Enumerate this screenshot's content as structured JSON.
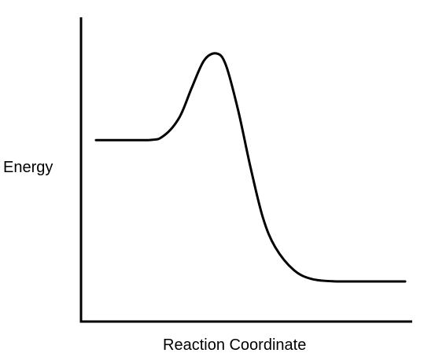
{
  "chart_data": {
    "type": "line",
    "xlabel": "Reaction Coordinate",
    "ylabel": "Energy",
    "series": [
      {
        "x": [
          0.0,
          0.17,
          0.22,
          0.27,
          0.31,
          0.35,
          0.39,
          0.42,
          0.46,
          0.5,
          0.54,
          0.58,
          0.64,
          0.7,
          0.78,
          0.86,
          1.0
        ],
        "values": [
          0.62,
          0.62,
          0.64,
          0.72,
          0.85,
          0.97,
          1.0,
          0.95,
          0.75,
          0.5,
          0.28,
          0.15,
          0.05,
          0.01,
          0.0,
          0.0,
          0.0
        ],
        "color": "#000000"
      }
    ],
    "xlim": [
      0,
      1
    ],
    "ylim": [
      0,
      1
    ],
    "grid": false,
    "ticks": false
  }
}
